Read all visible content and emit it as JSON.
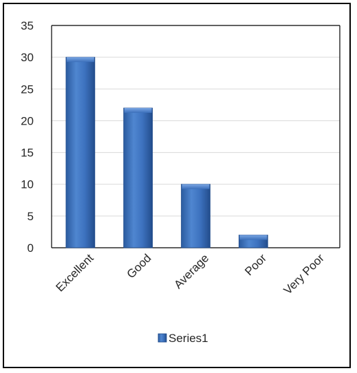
{
  "chart_data": {
    "type": "bar",
    "categories": [
      "Excellent",
      "Good",
      "Average",
      "Poor",
      "Very Poor"
    ],
    "series": [
      {
        "name": "Series1",
        "values": [
          30,
          22,
          10,
          2,
          0
        ],
        "color": "#3a6fbf"
      }
    ],
    "ylim": [
      0,
      35
    ],
    "yticks": [
      0,
      5,
      10,
      15,
      20,
      25,
      30,
      35
    ],
    "grid": true,
    "legend": "bottom",
    "title": "",
    "xlabel": "",
    "ylabel": ""
  },
  "colors": {
    "bar_top": "#5b8fd9",
    "bar_mid": "#2e5fa6",
    "bar_edge": "#1f4a8a",
    "grid": "#d9d9d9",
    "axis": "#000000"
  }
}
